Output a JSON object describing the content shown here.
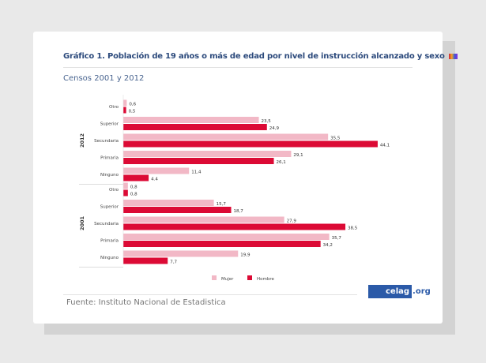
{
  "title": "Gráfico 1. Población de 19 años o más de edad por nivel  de instrucción alcanzado y sexo",
  "subtitle": "Censos 2001 y 2012",
  "source": "Fuente: Instituto Nacional de Estadistica",
  "logo": {
    "main": "celag",
    "suffix": ".org"
  },
  "chart_data": {
    "type": "bar",
    "orientation": "horizontal",
    "colors": {
      "Mujer": "#f2b8c6",
      "Hombre": "#dc0a35"
    },
    "legend": {
      "position": "bottom",
      "items": [
        "Mujer",
        "Hombre"
      ]
    },
    "groups": [
      {
        "year": "2012",
        "categories": [
          "Otro",
          "Superior",
          "Secundaria",
          "Primaria",
          "Ninguno"
        ],
        "series": [
          {
            "name": "Mujer",
            "values": [
              0.6,
              23.5,
              35.5,
              29.1,
              11.4
            ],
            "labels": [
              "0,6",
              "23,5",
              "35,5",
              "29,1",
              "11,4"
            ]
          },
          {
            "name": "Hombre",
            "values": [
              0.5,
              24.9,
              44.1,
              26.1,
              4.4
            ],
            "labels": [
              "0,5",
              "24,9",
              "44,1",
              "26,1",
              "4.4"
            ]
          }
        ]
      },
      {
        "year": "2001",
        "categories": [
          "Otro",
          "Superior",
          "Secundaria",
          "Primaria",
          "Ninguno"
        ],
        "series": [
          {
            "name": "Mujer",
            "values": [
              0.8,
              15.7,
              27.9,
              35.7,
              19.9
            ],
            "labels": [
              "0,8",
              "15,7",
              "27,9",
              "35,7",
              "19,9"
            ]
          },
          {
            "name": "Hombre",
            "values": [
              0.8,
              18.7,
              38.5,
              34.2,
              7.7
            ],
            "labels": [
              "0,8",
              "18,7",
              "38,5",
              "34,2",
              "7,7"
            ]
          }
        ]
      }
    ]
  }
}
